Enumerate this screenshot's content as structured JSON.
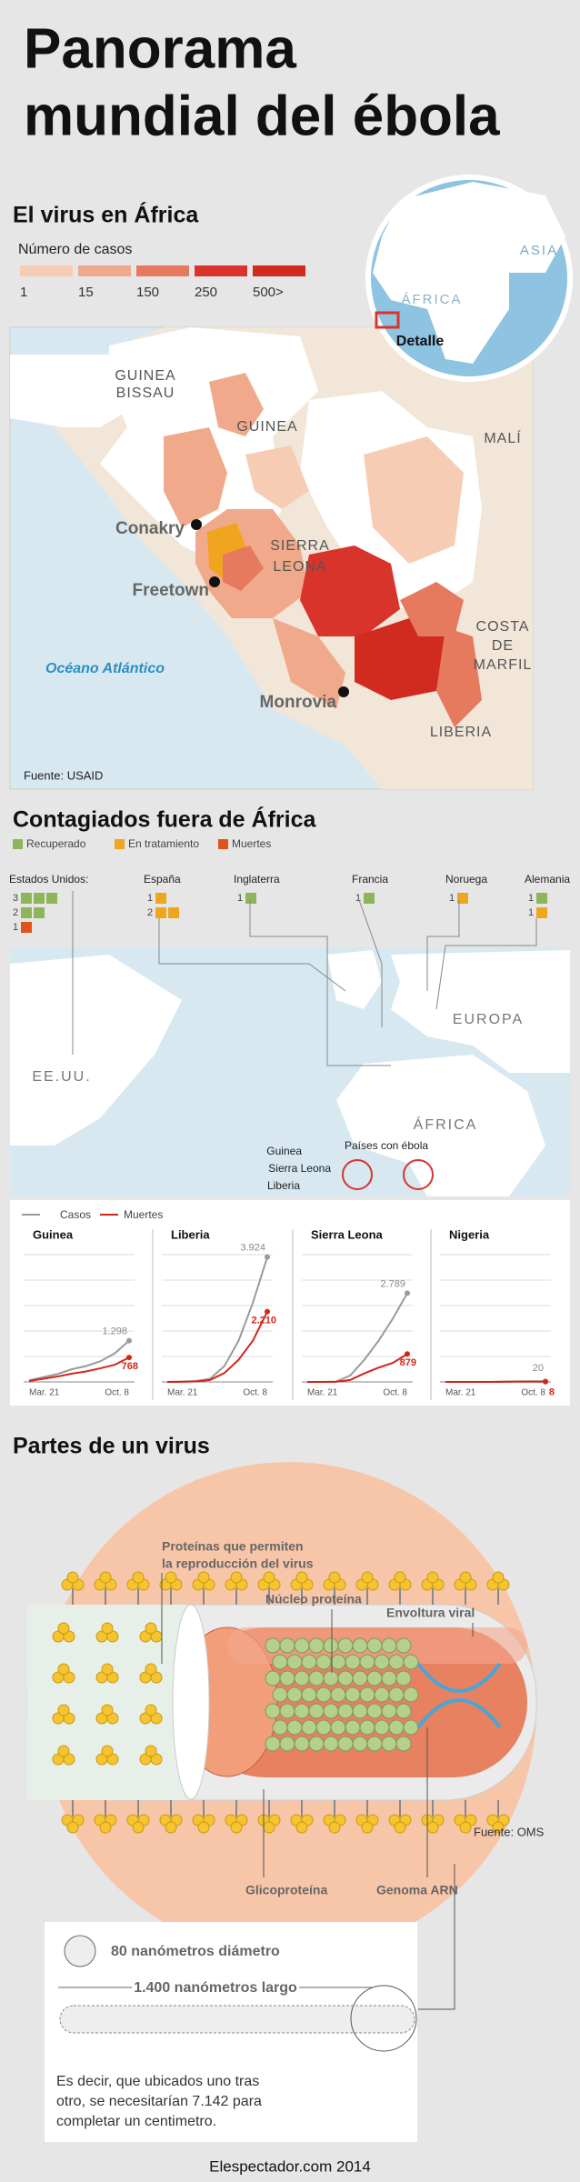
{
  "header": {
    "title": [
      "Panorama",
      "mundial del ébola"
    ]
  },
  "africa": {
    "heading": "El virus en África",
    "legend_title": "Número de casos",
    "legend": [
      {
        "label": "1",
        "color": "#f6cdb4"
      },
      {
        "label": "15",
        "color": "#f0a98a"
      },
      {
        "label": "150",
        "color": "#e57a5f"
      },
      {
        "label": "250",
        "color": "#d9342b"
      },
      {
        "label": "500>",
        "color": "#d12a1f"
      }
    ],
    "globe": {
      "labels": [
        "ASIA",
        "ÁFRICA",
        "Detalle"
      ]
    },
    "map": {
      "countries": [
        "GUINEA",
        "BISSAU",
        "GUINEA",
        "MALÍ",
        "SIERRA",
        "LEONA",
        "COSTA",
        "DE",
        "MARFIL",
        "LIBERIA"
      ],
      "cities": [
        "Conakry",
        "Freetown",
        "Monrovia"
      ],
      "ocean": "Océano Atlántico",
      "source": "Fuente: USAID"
    }
  },
  "outside": {
    "heading": "Contagiados fuera de África",
    "legend": [
      {
        "label": "Recuperado",
        "color": "#8db65a"
      },
      {
        "label": "En tratamiento",
        "color": "#f0a51e"
      },
      {
        "label": "Muertes",
        "color": "#e0541c"
      }
    ],
    "countries": [
      {
        "name": "Estados Unidos:",
        "rows": [
          {
            "count": "3",
            "status": 0,
            "n": 3
          },
          {
            "count": "2",
            "status": 0,
            "n": 2
          },
          {
            "count": "1",
            "status": 2,
            "n": 1
          }
        ]
      },
      {
        "name": "España",
        "rows": [
          {
            "count": "1",
            "status": 1,
            "n": 1
          },
          {
            "count": "2",
            "status": 1,
            "n": 2
          }
        ]
      },
      {
        "name": "Inglaterra",
        "rows": [
          {
            "count": "1",
            "status": 0,
            "n": 1
          }
        ]
      },
      {
        "name": "Francia",
        "rows": [
          {
            "count": "1",
            "status": 0,
            "n": 1
          }
        ]
      },
      {
        "name": "Noruega",
        "rows": [
          {
            "count": "1",
            "status": 1,
            "n": 1
          }
        ]
      },
      {
        "name": "Alemania",
        "rows": [
          {
            "count": "1",
            "status": 0,
            "n": 1
          },
          {
            "count": "1",
            "status": 1,
            "n": 1
          }
        ]
      }
    ],
    "map_labels": [
      "EE.UU.",
      "EUROPA",
      "ÁFRICA",
      "Países con ébola",
      "Guinea",
      "Sierra Leona",
      "Liberia"
    ]
  },
  "chart_data": [
    {
      "type": "line",
      "title": "Guinea",
      "categories": [
        "Mar. 21",
        null,
        null,
        null,
        null,
        null,
        null,
        "Oct. 8"
      ],
      "ylim": [
        0,
        4000
      ],
      "yticks": [
        0,
        800,
        1600,
        2400,
        3200,
        4000
      ],
      "series": [
        {
          "name": "Casos",
          "color": "#9a9a9a",
          "values": [
            49,
            150,
            250,
            400,
            500,
            650,
            900,
            1298
          ],
          "value_labels": [
            null,
            null,
            null,
            null,
            null,
            null,
            null,
            "1.298"
          ]
        },
        {
          "name": "Muertes",
          "color": "#d3261b",
          "values": [
            29,
            100,
            170,
            260,
            330,
            430,
            540,
            768
          ]
        }
      ]
    },
    {
      "type": "line",
      "title": "Liberia",
      "categories": [
        "Mar. 21",
        null,
        null,
        null,
        null,
        null,
        null,
        "Oct. 8"
      ],
      "ylim": [
        0,
        4000
      ],
      "yticks": [
        0,
        800,
        1600,
        2400,
        3200,
        4000
      ],
      "series": [
        {
          "name": "Casos",
          "color": "#9a9a9a",
          "values": [
            0,
            10,
            30,
            100,
            500,
            1300,
            2500,
            3924
          ],
          "value_labels": [
            null,
            null,
            null,
            null,
            null,
            null,
            null,
            "3.924"
          ]
        },
        {
          "name": "Muertes",
          "color": "#d3261b",
          "values": [
            0,
            5,
            15,
            60,
            280,
            700,
            1300,
            2210
          ],
          "value_labels": [
            null,
            null,
            null,
            null,
            null,
            null,
            null,
            "2.210"
          ]
        }
      ]
    },
    {
      "type": "line",
      "title": "Sierra Leona",
      "categories": [
        "Mar. 21",
        null,
        null,
        null,
        null,
        null,
        null,
        "Oct. 8"
      ],
      "ylim": [
        0,
        4000
      ],
      "yticks": [
        0,
        800,
        1600,
        2400,
        3200,
        4000
      ],
      "series": [
        {
          "name": "Casos",
          "color": "#9a9a9a",
          "values": [
            0,
            0,
            10,
            200,
            700,
            1300,
            2000,
            2789
          ],
          "value_labels": [
            null,
            null,
            null,
            null,
            null,
            null,
            null,
            "2.789"
          ]
        },
        {
          "name": "Muertes",
          "color": "#d3261b",
          "values": [
            0,
            0,
            5,
            60,
            270,
            450,
            600,
            879
          ]
        }
      ]
    },
    {
      "type": "line",
      "title": "Nigeria",
      "categories": [
        "Mar. 21",
        null,
        null,
        null,
        null,
        null,
        null,
        "Oct. 8"
      ],
      "ylim": [
        0,
        4000
      ],
      "yticks": [
        0,
        800,
        1600,
        2400,
        3200,
        4000
      ],
      "series": [
        {
          "name": "Casos",
          "color": "#9a9a9a",
          "values": [
            0,
            0,
            0,
            0,
            10,
            18,
            20,
            20
          ]
        },
        {
          "name": "Muertes",
          "color": "#d3261b",
          "values": [
            0,
            0,
            0,
            0,
            5,
            8,
            8,
            8
          ]
        }
      ]
    }
  ],
  "virus": {
    "heading": "Partes de un virus",
    "labels": {
      "proteins": [
        "Proteínas que permiten",
        "la reproducción del virus"
      ],
      "nucleus": "Núcleo proteína",
      "envelope": "Envoltura viral",
      "source": "Fuente: OMS",
      "glyco": "Glicoproteína",
      "genome": "Genoma ARN"
    },
    "box": {
      "diameter": "80 nanómetros diámetro",
      "length": "1.400 nanómetros largo",
      "text": [
        "Es decir, que ubicados uno tras",
        "otro, se necesitarían 7.142 para",
        "completar un centimetro."
      ]
    }
  },
  "footer": "Elespectador.com 2014"
}
